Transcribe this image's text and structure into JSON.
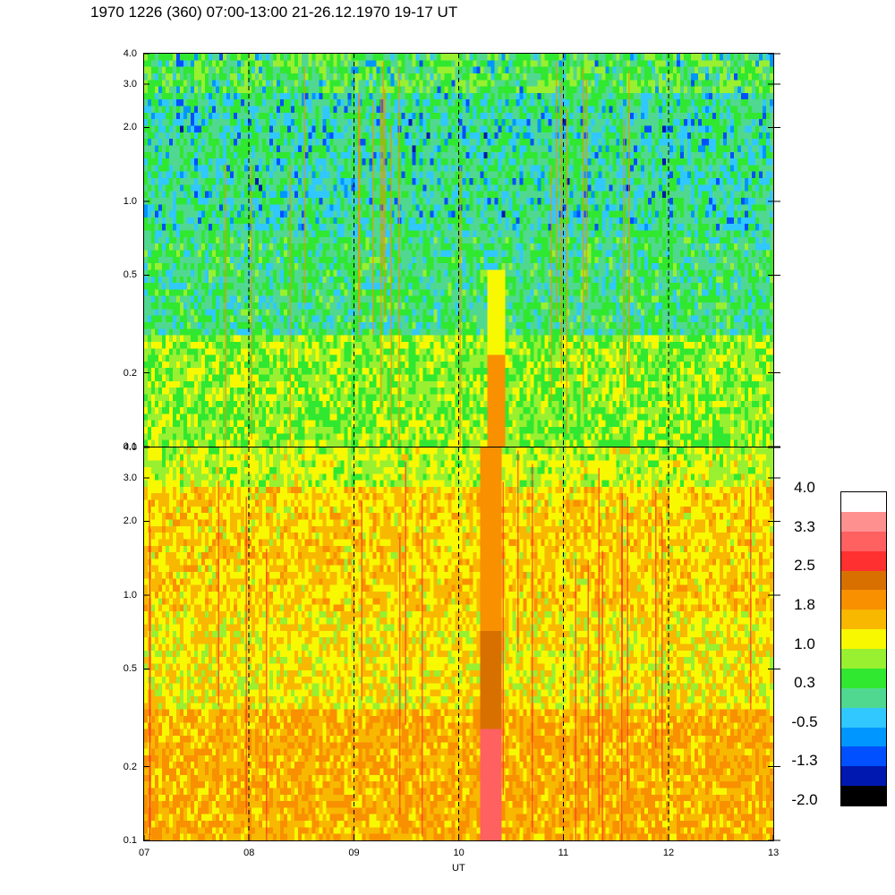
{
  "title": "1970 1226 (360) 07:00-13:00 21-26.12.1970  19-17 UT",
  "colors": {
    "scale": [
      "#000000",
      "#0018b0",
      "#0050ff",
      "#0096ff",
      "#30c8ff",
      "#50d890",
      "#30e830",
      "#98f030",
      "#f8f800",
      "#f8b800",
      "#f89000",
      "#d87000",
      "#ff3030",
      "#ff6060",
      "#ff9090",
      "#ffffff"
    ]
  },
  "chart_data": {
    "type": "heatmap",
    "xlabel": "UT",
    "x_ticks": [
      "07",
      "08",
      "09",
      "10",
      "11",
      "12",
      "13"
    ],
    "x_range": [
      7,
      13
    ],
    "y_scale": "log",
    "y_range": [
      0.1,
      4.0
    ],
    "panels": [
      {
        "name": "upper",
        "y_ticks": [
          "0.1",
          "0.2",
          "0.5",
          "1.0",
          "2.0",
          "3.0",
          "4.0"
        ]
      },
      {
        "name": "lower",
        "y_ticks": [
          "0.1",
          "0.2",
          "0.5",
          "1.0",
          "2.0",
          "3.0",
          "4.0"
        ]
      }
    ],
    "dashed_hour_lines": [
      "08",
      "09",
      "10",
      "11",
      "12"
    ],
    "colorbar": {
      "labels": [
        "4.0",
        "3.3",
        "2.5",
        "1.8",
        "1.0",
        "0.3",
        "-0.5",
        "-1.3",
        "-2.0"
      ],
      "range": [
        -2.0,
        4.0
      ]
    }
  }
}
